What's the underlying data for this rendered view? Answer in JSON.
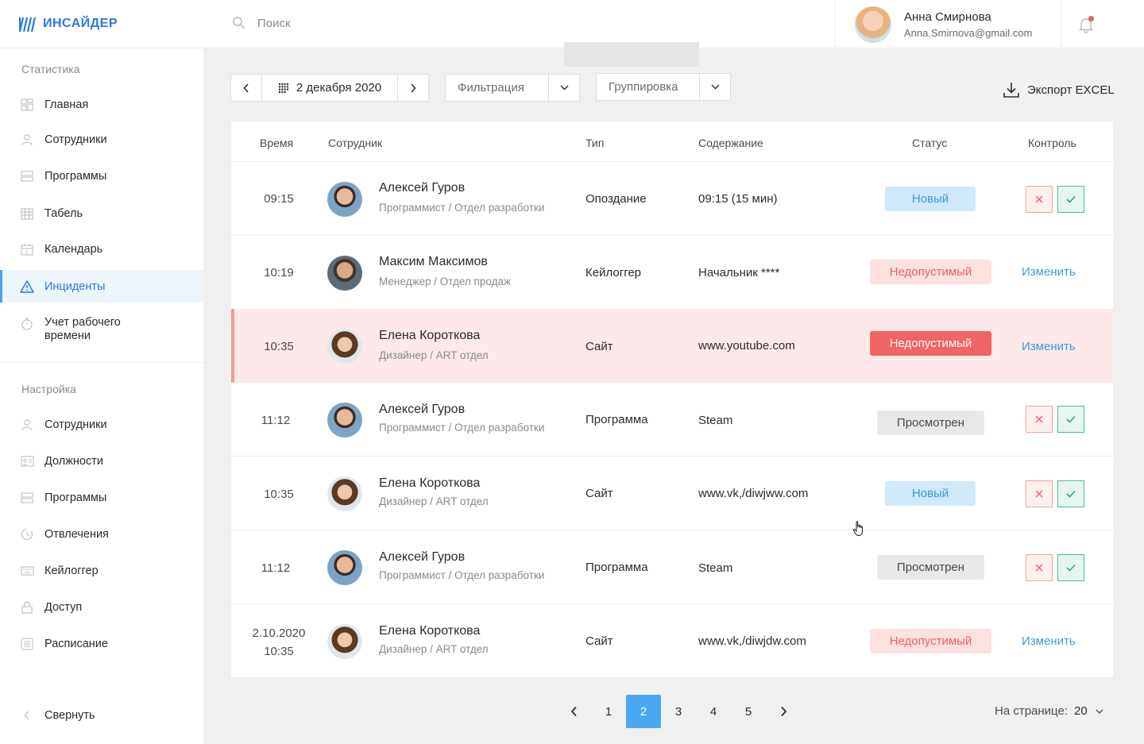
{
  "app": {
    "brand": "ИНСАЙДЕР"
  },
  "sidebar": {
    "stats_title": "Статистика",
    "stats_items": [
      {
        "label": "Главная",
        "icon": "dashboard-icon"
      },
      {
        "label": "Сотрудники",
        "icon": "user-icon"
      },
      {
        "label": "Программы",
        "icon": "programs-icon"
      },
      {
        "label": "Табель",
        "icon": "grid-calendar-icon"
      },
      {
        "label": "Календарь",
        "icon": "calendar-icon"
      },
      {
        "label": "Инциденты",
        "icon": "warning-icon",
        "active": true
      },
      {
        "label": "Учет рабочего времени",
        "icon": "stopwatch-icon"
      }
    ],
    "settings_title": "Настройка",
    "settings_items": [
      {
        "label": "Сотрудники",
        "icon": "user-icon"
      },
      {
        "label": "Должности",
        "icon": "id-card-icon"
      },
      {
        "label": "Программы",
        "icon": "programs-icon"
      },
      {
        "label": "Отвлечения",
        "icon": "distraction-icon"
      },
      {
        "label": "Кейлоггер",
        "icon": "keyboard-icon"
      },
      {
        "label": "Доступ",
        "icon": "lock-icon"
      },
      {
        "label": "Расписание",
        "icon": "schedule-icon"
      }
    ],
    "collapse_label": "Свернуть"
  },
  "header": {
    "search_placeholder": "Поиск",
    "user_name": "Анна Смирнова",
    "user_email": "Anna.Smirnova@gmail.com"
  },
  "toolbar": {
    "date": "2 декабря 2020",
    "filter_label": "Фильтрация",
    "group_label": "Группировка",
    "export_label": "Экспорт EXCEL"
  },
  "table": {
    "columns": [
      "Время",
      "Сотрудник",
      "Тип",
      "Содержание",
      "Статус",
      "Контроль"
    ],
    "rows": [
      {
        "time": "09:15",
        "name": "Алексей Гуров",
        "role": "Программист / Отдел разработки",
        "type": "Опоздание",
        "content": "09:15 (15 мин)",
        "status": "Новый",
        "control": "buttons"
      },
      {
        "time": "10:19",
        "name": "Максим Максимов",
        "role": "Менеджер / Отдел продаж",
        "type": "Кейлоггер",
        "content": "Начальник ****",
        "status": "Недопустимый",
        "control": "Изменить"
      },
      {
        "time": "10:35",
        "name": "Елена Короткова",
        "role": "Дизайнер / ART отдел",
        "type": "Сайт",
        "content": "www.youtube.com",
        "status": "Недопустимый",
        "control": "Изменить"
      },
      {
        "time": "11:12",
        "name": "Алексей Гуров",
        "role": "Программист / Отдел разработки",
        "type": "Программа",
        "content": "Steam",
        "status": "Просмотрен",
        "control": "buttons"
      },
      {
        "time": "10:35",
        "name": "Елена Короткова",
        "role": "Дизайнер / ART отдел",
        "type": "Сайт",
        "content": "www.vk,/diwjww.com",
        "status": "Новый",
        "control": "buttons"
      },
      {
        "time": "11:12",
        "name": "Алексей Гуров",
        "role": "Программист / Отдел разработки",
        "type": "Программа",
        "content": "Steam",
        "status": "Просмотрен",
        "control": "buttons"
      },
      {
        "date": "2.10.2020",
        "time": "10:35",
        "name": "Елена Короткова",
        "role": "Дизайнер / ART отдел",
        "type": "Сайт",
        "content": "www.vk,/diwjdw.com",
        "status": "Недопустимый",
        "control": "Изменить"
      }
    ]
  },
  "pagination": {
    "pages": [
      "1",
      "2",
      "3",
      "4",
      "5"
    ],
    "current": "2",
    "per_page_label": "На странице:",
    "per_page_value": "20"
  },
  "colors": {
    "accent": "#4aa8f2",
    "brand": "#2b78e4",
    "danger": "#f06464",
    "success": "#2fa77d"
  }
}
